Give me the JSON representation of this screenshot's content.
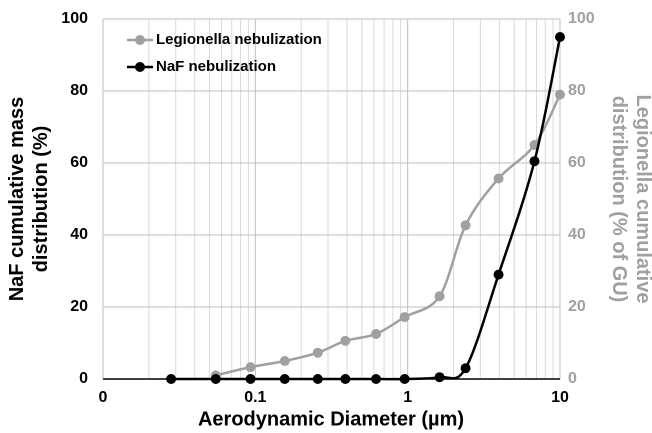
{
  "chart_data": {
    "type": "line",
    "xlabel": "Aerodynamic Diameter (µm)",
    "ylabel": [
      "NaF cumulative mass",
      "distribution (%)"
    ],
    "y2label": [
      "Legionella cumulative",
      "distribution (% of GU)"
    ],
    "x": [
      0.028,
      0.055,
      0.093,
      0.156,
      0.257,
      0.39,
      0.62,
      0.955,
      1.62,
      2.4,
      3.95,
      6.8,
      10
    ],
    "series": [
      {
        "name": "Legionella nebulization",
        "color": "#a0a0a0",
        "axis": "y2",
        "values": [
          null,
          1,
          3.3,
          5,
          7.3,
          10.6,
          12.5,
          17.2,
          23,
          42.7,
          55.7,
          65,
          79
        ]
      },
      {
        "name": "NaF nebulization",
        "color": "#000000",
        "values": [
          0,
          0,
          0,
          0,
          0,
          0,
          0,
          0,
          0.5,
          3,
          29,
          60.5,
          95
        ]
      }
    ],
    "xscale": "log",
    "xlim": [
      0.01,
      10
    ],
    "xticks": [
      {
        "value": 0.01,
        "label": "0"
      },
      0.1,
      1,
      10
    ],
    "ylim": [
      0,
      100
    ],
    "yticks": [
      0,
      20,
      40,
      60,
      80,
      100
    ],
    "y2lim": [
      0,
      100
    ],
    "y2ticks": [
      0,
      20,
      40,
      60,
      80,
      100
    ],
    "grid": true,
    "legend": "upper left"
  }
}
